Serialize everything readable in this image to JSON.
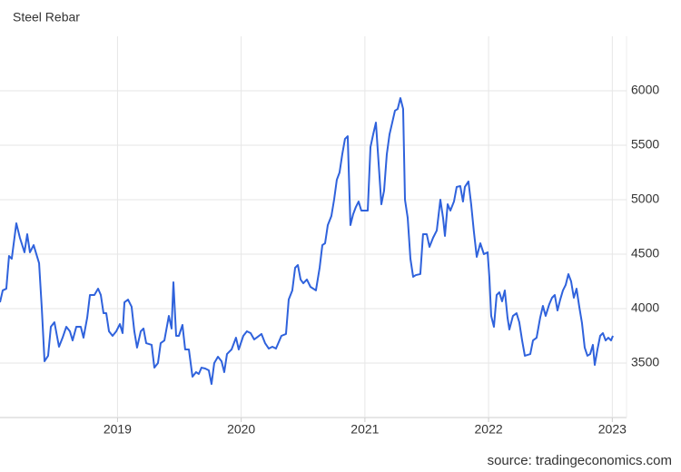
{
  "chart_data": {
    "type": "line",
    "title": "Steel Rebar",
    "source": "source: tradingeconomics.com",
    "color": "#2f62dc",
    "grid": true,
    "xlim": [
      2018.05,
      2023.115
    ],
    "xticks": [
      2019,
      2020,
      2021,
      2022,
      2023
    ],
    "ylim": [
      3000,
      6500
    ],
    "yticks": [
      3500,
      4000,
      4500,
      5000,
      5500,
      6000
    ],
    "x": [
      2018.05,
      2018.072,
      2018.101,
      2018.123,
      2018.145,
      2018.182,
      2018.211,
      2018.248,
      2018.27,
      2018.292,
      2018.322,
      2018.366,
      2018.388,
      2018.41,
      2018.439,
      2018.461,
      2018.49,
      2018.527,
      2018.556,
      2018.586,
      2018.615,
      2018.637,
      2018.667,
      2018.703,
      2018.725,
      2018.755,
      2018.777,
      2018.813,
      2018.843,
      2018.865,
      2018.887,
      2018.909,
      2018.931,
      2018.96,
      2018.99,
      2019.019,
      2019.041,
      2019.056,
      2019.085,
      2019.114,
      2019.136,
      2019.158,
      2019.188,
      2019.21,
      2019.232,
      2019.276,
      2019.298,
      2019.327,
      2019.349,
      2019.379,
      2019.415,
      2019.437,
      2019.452,
      2019.474,
      2019.496,
      2019.525,
      2019.547,
      2019.577,
      2019.606,
      2019.635,
      2019.657,
      2019.679,
      2019.709,
      2019.738,
      2019.76,
      2019.782,
      2019.812,
      2019.841,
      2019.863,
      2019.885,
      2019.922,
      2019.958,
      2019.98,
      2020.017,
      2020.046,
      2020.076,
      2020.105,
      2020.135,
      2020.164,
      2020.193,
      2020.223,
      2020.252,
      2020.281,
      2020.325,
      2020.362,
      2020.384,
      2020.413,
      2020.436,
      2020.458,
      2020.48,
      2020.502,
      2020.531,
      2020.56,
      2020.604,
      2020.634,
      2020.656,
      2020.678,
      2020.7,
      2020.729,
      2020.751,
      2020.773,
      2020.795,
      2020.817,
      2020.839,
      2020.861,
      2020.883,
      2020.905,
      2020.927,
      2020.949,
      2020.971,
      2021.023,
      2021.045,
      2021.067,
      2021.089,
      2021.111,
      2021.133,
      2021.155,
      2021.177,
      2021.199,
      2021.221,
      2021.243,
      2021.265,
      2021.287,
      2021.309,
      2021.324,
      2021.346,
      2021.368,
      2021.39,
      2021.412,
      2021.448,
      2021.47,
      2021.5,
      2021.522,
      2021.551,
      2021.581,
      2021.61,
      2021.632,
      2021.647,
      2021.669,
      2021.691,
      2021.72,
      2021.742,
      2021.771,
      2021.793,
      2021.808,
      2021.837,
      2021.859,
      2021.881,
      2021.904,
      2021.933,
      2021.962,
      2021.992,
      2022.006,
      2022.021,
      2022.043,
      2022.065,
      2022.087,
      2022.109,
      2022.131,
      2022.153,
      2022.168,
      2022.197,
      2022.226,
      2022.248,
      2022.271,
      2022.293,
      2022.337,
      2022.359,
      2022.388,
      2022.417,
      2022.439,
      2022.461,
      2022.491,
      2022.513,
      2022.535,
      2022.557,
      2022.579,
      2022.601,
      2022.623,
      2022.645,
      2022.667,
      2022.689,
      2022.711,
      2022.733,
      2022.755,
      2022.777,
      2022.799,
      2022.821,
      2022.843,
      2022.858,
      2022.88,
      2022.902,
      2022.924,
      2022.946,
      2022.968,
      2022.99,
      2023.005
    ],
    "values": [
      4058,
      4167,
      4183,
      4483,
      4458,
      4783,
      4650,
      4517,
      4683,
      4517,
      4583,
      4417,
      4000,
      3517,
      3567,
      3833,
      3875,
      3650,
      3733,
      3833,
      3792,
      3708,
      3833,
      3833,
      3733,
      3917,
      4125,
      4125,
      4183,
      4125,
      3958,
      3958,
      3792,
      3750,
      3792,
      3858,
      3775,
      4058,
      4083,
      4017,
      3792,
      3642,
      3792,
      3817,
      3683,
      3667,
      3458,
      3500,
      3683,
      3708,
      3933,
      3817,
      4242,
      3750,
      3750,
      3850,
      3625,
      3625,
      3375,
      3417,
      3400,
      3458,
      3450,
      3433,
      3308,
      3500,
      3558,
      3517,
      3417,
      3583,
      3625,
      3733,
      3625,
      3750,
      3792,
      3775,
      3717,
      3742,
      3767,
      3683,
      3633,
      3650,
      3633,
      3750,
      3767,
      4083,
      4167,
      4375,
      4400,
      4267,
      4233,
      4267,
      4200,
      4167,
      4375,
      4583,
      4600,
      4767,
      4850,
      5000,
      5183,
      5250,
      5417,
      5558,
      5583,
      4767,
      4867,
      4933,
      4983,
      4900,
      4900,
      5483,
      5600,
      5708,
      5333,
      4958,
      5083,
      5417,
      5600,
      5708,
      5817,
      5833,
      5933,
      5833,
      5000,
      4833,
      4458,
      4292,
      4308,
      4317,
      4683,
      4683,
      4567,
      4650,
      4717,
      5000,
      4833,
      4667,
      4958,
      4900,
      4983,
      5117,
      5125,
      4983,
      5117,
      5167,
      4958,
      4708,
      4475,
      4600,
      4500,
      4517,
      4292,
      3933,
      3833,
      4125,
      4150,
      4067,
      4167,
      3917,
      3808,
      3933,
      3958,
      3875,
      3708,
      3567,
      3583,
      3708,
      3733,
      3917,
      4025,
      3933,
      4042,
      4100,
      4125,
      3983,
      4083,
      4167,
      4217,
      4317,
      4250,
      4100,
      4183,
      4017,
      3867,
      3642,
      3567,
      3583,
      3667,
      3483,
      3625,
      3750,
      3775,
      3708,
      3733,
      3708,
      3750
    ]
  }
}
